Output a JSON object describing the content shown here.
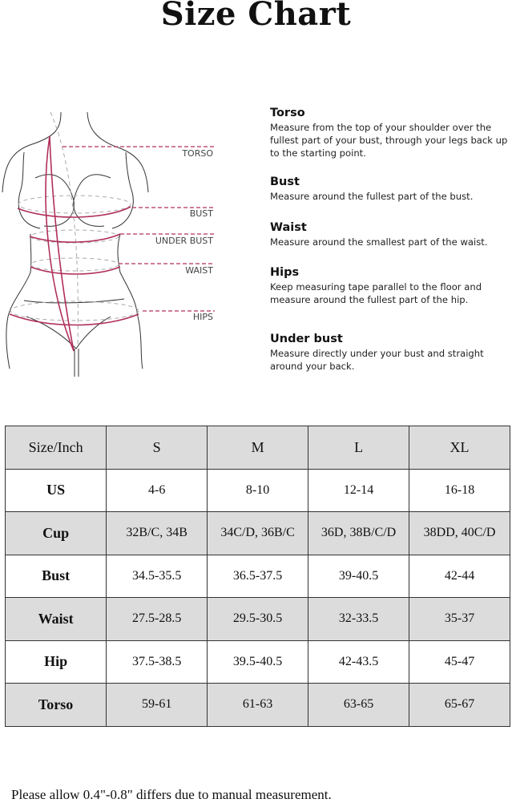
{
  "title": "Size Chart",
  "figure_labels": [
    "TORSO",
    "BUST",
    "UNDER BUST",
    "WAIST",
    "HIPS"
  ],
  "accent_color": "#b0305a",
  "measurements": [
    {
      "heading": "Torso",
      "text": "Measure from the top of your shoulder over  the fullest part of your bust, through your  legs back up to the starting point."
    },
    {
      "heading": "Bust",
      "text": "Measure around the fullest part of the bust."
    },
    {
      "heading": "Waist",
      "text": "Measure around the smallest part of the waist."
    },
    {
      "heading": "Hips",
      "text": "Keep measuring tape parallel to the floor and measure around the fullest part of the hip."
    },
    {
      "heading": "Under bust",
      "text": "Measure directly under your bust and straight around your back."
    }
  ],
  "table": {
    "header": [
      "Size/Inch",
      "S",
      "M",
      "L",
      "XL"
    ],
    "rows": [
      [
        "US",
        "4-6",
        "8-10",
        "12-14",
        "16-18"
      ],
      [
        "Cup",
        "32B/C, 34B",
        "34C/D, 36B/C",
        "36D, 38B/C/D",
        "38DD, 40C/D"
      ],
      [
        "Bust",
        "34.5-35.5",
        "36.5-37.5",
        "39-40.5",
        "42-44"
      ],
      [
        "Waist",
        "27.5-28.5",
        "29.5-30.5",
        "32-33.5",
        "35-37"
      ],
      [
        "Hip",
        "37.5-38.5",
        "39.5-40.5",
        "42-43.5",
        "45-47"
      ],
      [
        "Torso",
        "59-61",
        "61-63",
        "63-65",
        "65-67"
      ]
    ]
  },
  "note": "Please allow 0.4\"-0.8\" differs due to manual measurement."
}
